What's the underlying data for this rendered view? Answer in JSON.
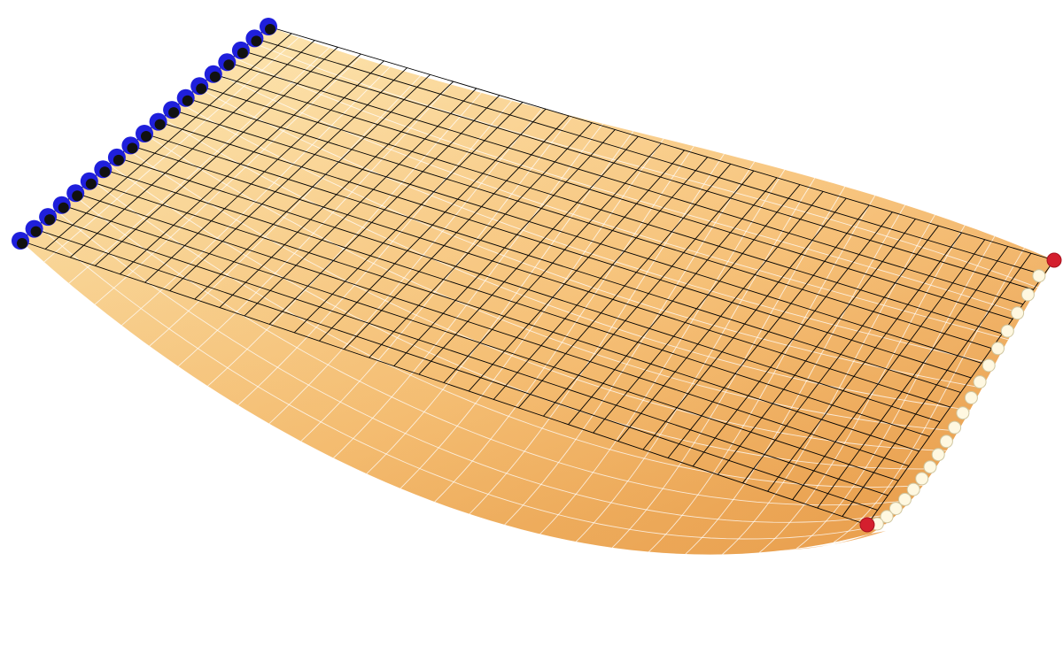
{
  "scene": {
    "type": "3d-mesh-surface",
    "colors": {
      "surface_light": "#fde6a8",
      "surface_mid": "#fbc577",
      "surface_dark": "#eda04e",
      "surface_grid": "#ffffff",
      "mesh_lines": "#000000",
      "fixed_node_outer": "#1f1fdc",
      "fixed_node_inner": "#111111",
      "edge_node_fill": "#fff8e1",
      "edge_node_stroke": "#cfc6a0",
      "corner_node": "#d41f2e"
    },
    "mesh": {
      "rows": 18,
      "cols": 34
    },
    "surface_grid": {
      "u_lines": 14,
      "v_lines": 26
    },
    "fixed_supports": {
      "count": 19,
      "shape": "ring",
      "color": "blue"
    },
    "free_edge_nodes": {
      "count": 19,
      "shape": "disc",
      "color": "cream"
    },
    "corner_markers": {
      "count": 2,
      "color": "red"
    }
  }
}
